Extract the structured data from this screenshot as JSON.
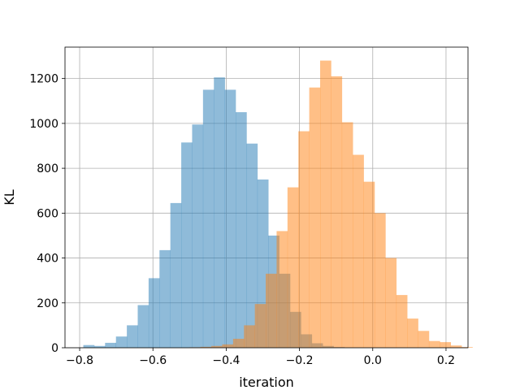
{
  "chart_data": {
    "type": "bar",
    "xlabel": "iteration",
    "ylabel": "KL",
    "xlim": [
      -0.84,
      0.26
    ],
    "ylim": [
      0,
      1340
    ],
    "grid": true,
    "x_ticks": [
      -0.8,
      -0.6,
      -0.4,
      -0.2,
      0.0,
      0.2
    ],
    "x_tick_labels": [
      "−0.8",
      "−0.6",
      "−0.4",
      "−0.2",
      "0.0",
      "0.2"
    ],
    "y_ticks": [
      0,
      200,
      400,
      600,
      800,
      1000,
      1200
    ],
    "y_tick_labels": [
      "0",
      "200",
      "400",
      "600",
      "800",
      "1000",
      "1200"
    ],
    "series": [
      {
        "color": "#1f77b4",
        "opacity": 0.5,
        "bin_start": -0.79,
        "bin_width": 0.0297,
        "values": [
          12,
          8,
          22,
          50,
          100,
          190,
          310,
          435,
          645,
          915,
          995,
          1150,
          1205,
          1150,
          1050,
          910,
          750,
          500,
          330,
          160,
          60,
          20,
          8,
          3
        ]
      },
      {
        "color": "#ff7f0e",
        "opacity": 0.5,
        "bin_start": -0.5,
        "bin_width": 0.0297,
        "values": [
          2,
          4,
          8,
          15,
          40,
          100,
          195,
          330,
          520,
          715,
          965,
          1160,
          1280,
          1210,
          1005,
          860,
          740,
          600,
          400,
          235,
          130,
          75,
          30,
          25,
          10,
          3
        ]
      }
    ]
  }
}
